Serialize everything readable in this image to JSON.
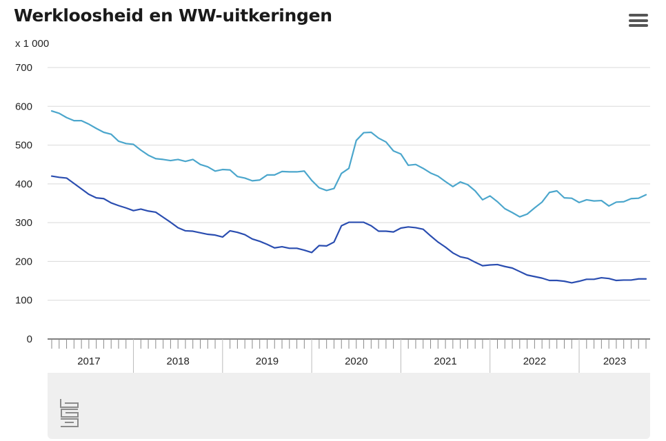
{
  "title": "Werkloosheid en WW-uitkeringen",
  "unit_label": "x 1 000",
  "menu_icon": "hamburger-menu-icon",
  "logo_icon": "cbs-logo-icon",
  "chart_data": {
    "type": "line",
    "title": "Werkloosheid en WW-uitkeringen",
    "ylabel": "x 1 000",
    "ylim": [
      0,
      700
    ],
    "yticks": [
      0,
      100,
      200,
      300,
      400,
      500,
      600,
      700
    ],
    "year_labels": [
      "2017",
      "2018",
      "2019",
      "2020",
      "2021",
      "2022",
      "2023"
    ],
    "grid": true,
    "x_start": "2017-01",
    "series": [
      {
        "color": "#4ba6cc",
        "values": [
          588,
          582,
          571,
          563,
          563,
          554,
          543,
          533,
          528,
          510,
          504,
          502,
          487,
          474,
          465,
          463,
          460,
          463,
          458,
          463,
          450,
          444,
          433,
          437,
          436,
          419,
          415,
          408,
          410,
          423,
          423,
          432,
          431,
          431,
          433,
          409,
          390,
          383,
          388,
          427,
          440,
          512,
          532,
          533,
          518,
          508,
          485,
          477,
          448,
          450,
          440,
          428,
          420,
          406,
          393,
          405,
          398,
          382,
          359,
          369,
          354,
          336,
          326,
          315,
          322,
          338,
          353,
          378,
          382,
          364,
          363,
          352,
          359,
          356,
          357,
          343,
          353,
          354,
          362,
          363,
          372
        ]
      },
      {
        "color": "#2a4db0",
        "values": [
          420,
          417,
          415,
          401,
          387,
          373,
          364,
          362,
          351,
          344,
          338,
          331,
          335,
          330,
          327,
          314,
          301,
          287,
          279,
          278,
          274,
          270,
          268,
          263,
          279,
          275,
          269,
          258,
          252,
          244,
          235,
          238,
          234,
          234,
          229,
          223,
          241,
          240,
          250,
          292,
          301,
          301,
          301,
          292,
          278,
          278,
          276,
          286,
          289,
          287,
          283,
          266,
          250,
          237,
          222,
          212,
          208,
          198,
          189,
          191,
          192,
          187,
          183,
          174,
          165,
          161,
          157,
          151,
          151,
          149,
          145,
          149,
          154,
          154,
          158,
          156,
          151,
          152,
          152,
          155,
          155
        ]
      }
    ]
  }
}
